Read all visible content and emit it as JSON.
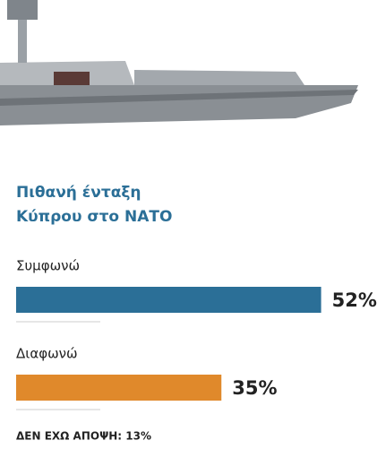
{
  "chart_data": {
    "type": "bar",
    "orientation": "horizontal",
    "title": [
      "Πιθανή ένταξη",
      "Κύπρου στο ΝΑΤΟ"
    ],
    "categories": [
      "Συμφωνώ",
      "Διαφωνώ"
    ],
    "values": [
      52,
      35
    ],
    "value_labels": [
      "52%",
      "35%"
    ],
    "colors": [
      "#2b6f97",
      "#e0892b"
    ],
    "note": "ΔΕΝ ΕΧΩ ΑΠΟΨΗ: 13%"
  }
}
